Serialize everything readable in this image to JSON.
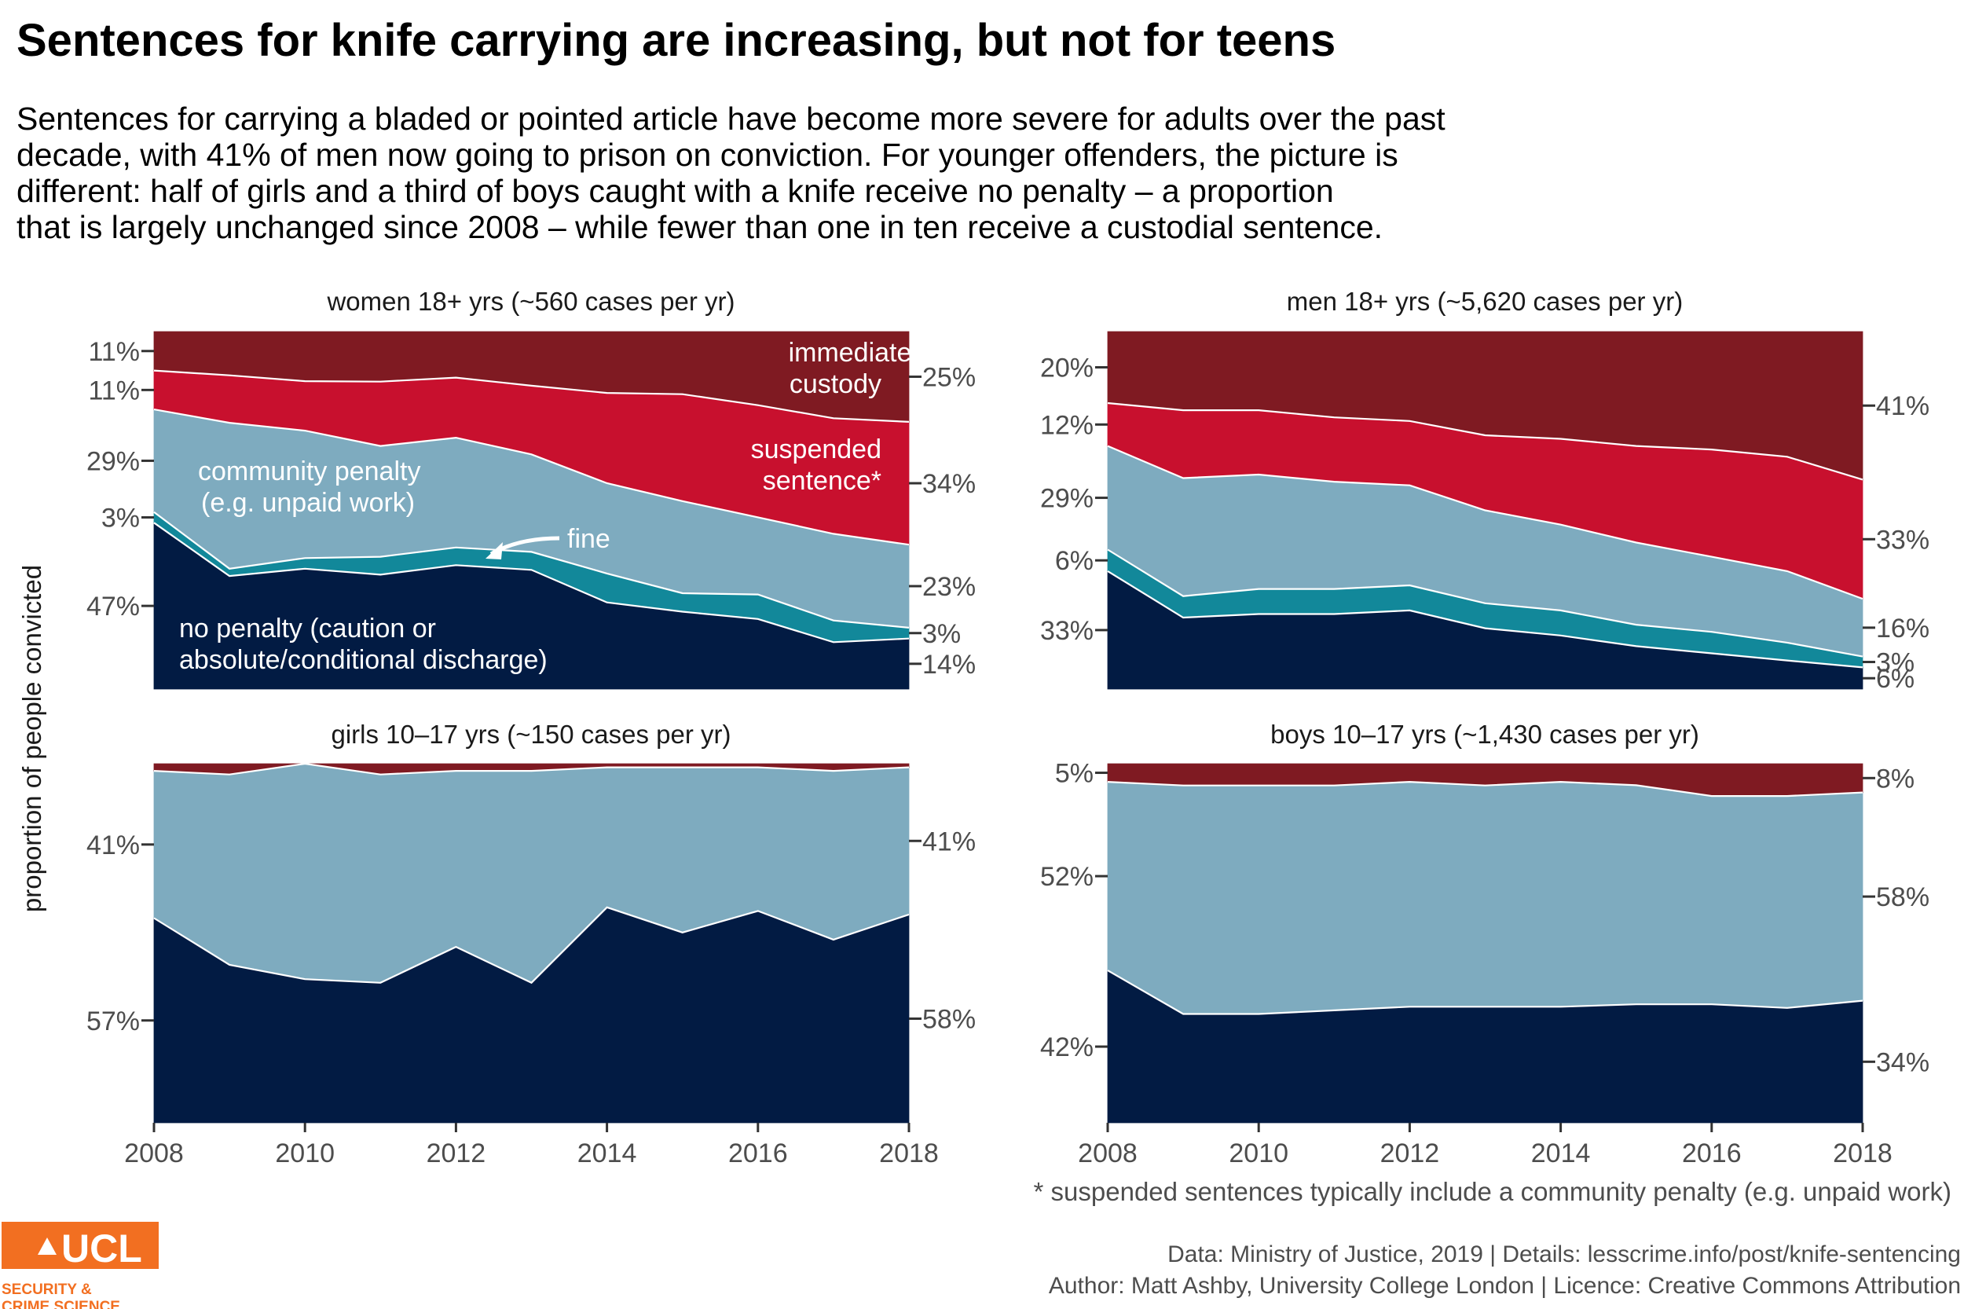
{
  "title": "Sentences for knife carrying are increasing, but not for teens",
  "subtitle_lines": [
    "Sentences for carrying a bladed or pointed article have become more severe for adults over the past",
    "decade, with 41% of men now going to prison on conviction. For younger offenders, the picture is",
    "different: half of girls and a third of boys caught with a knife receive no penalty – a proportion",
    "that is largely unchanged since 2008 – while fewer than one in ten receive a custodial sentence."
  ],
  "y_axis_label": "proportion of people convicted",
  "footnote": "* suspended sentences typically include a community penalty (e.g. unpaid work)",
  "source_line_1": "Data: Ministry of Justice, 2019 |  Details: lesscrime.info/post/knife-sentencing",
  "source_line_2": "Author: Matt Ashby, University College London |  Licence: Creative Commons Attribution",
  "logo": {
    "name": "UCL",
    "line1": "SECURITY &",
    "line2": "CRIME SCIENCE",
    "color": "#f26f21"
  },
  "colors": {
    "no_penalty": "#021b43",
    "fine": "#12889a",
    "community": "#7eabbf",
    "suspended": "#c8102e",
    "custody": "#7f1a22"
  },
  "annotations": {
    "custody_1": "immediate",
    "custody_2": "custody",
    "suspended_1": "suspended",
    "suspended_2": "sentence*",
    "community_1": "community penalty",
    "community_2": "(e.g. unpaid work)",
    "fine": "fine",
    "no_penalty_1": "no penalty (caution or",
    "no_penalty_2": "absolute/conditional discharge)"
  },
  "chart_data": [
    {
      "type": "area",
      "title": "women 18+ yrs (~560 cases per yr)",
      "x": [
        2008,
        2009,
        2010,
        2011,
        2012,
        2013,
        2014,
        2015,
        2016,
        2017,
        2018
      ],
      "stack_order": [
        "no penalty",
        "fine",
        "community penalty",
        "suspended sentence",
        "immediate custody"
      ],
      "series": [
        {
          "name": "no penalty",
          "values": [
            47,
            31,
            34,
            32,
            35,
            33,
            24,
            21,
            20,
            13,
            14
          ]
        },
        {
          "name": "fine",
          "values": [
            3,
            2,
            3,
            5,
            5,
            5,
            8,
            5,
            7,
            6,
            3
          ]
        },
        {
          "name": "community penalty",
          "values": [
            29,
            40,
            36,
            31,
            31,
            27,
            25,
            25,
            22,
            24,
            23
          ]
        },
        {
          "name": "suspended sentence",
          "values": [
            11,
            13,
            14,
            18,
            17,
            19,
            25,
            29,
            32,
            32,
            34
          ]
        },
        {
          "name": "immediate custody",
          "values": [
            11,
            12,
            14,
            14,
            13,
            15,
            17,
            17,
            21,
            24,
            25
          ]
        }
      ],
      "left_labels": [
        "47%",
        "3%",
        "29%",
        "11%",
        "11%"
      ],
      "right_labels": [
        "14%",
        "3%",
        "23%",
        "34%",
        "25%"
      ],
      "ylim": [
        0,
        100
      ],
      "xticks": [
        "2008",
        "2010",
        "2012",
        "2014",
        "2016",
        "2018"
      ]
    },
    {
      "type": "area",
      "title": "men 18+ yrs (~5,620 cases per yr)",
      "x": [
        2008,
        2009,
        2010,
        2011,
        2012,
        2013,
        2014,
        2015,
        2016,
        2017,
        2018
      ],
      "stack_order": [
        "no penalty",
        "fine",
        "community penalty",
        "suspended sentence",
        "immediate custody"
      ],
      "series": [
        {
          "name": "no penalty",
          "values": [
            33,
            20,
            21,
            21,
            22,
            17,
            15,
            12,
            10,
            8,
            6
          ]
        },
        {
          "name": "fine",
          "values": [
            6,
            6,
            7,
            7,
            7,
            7,
            7,
            6,
            6,
            5,
            3
          ]
        },
        {
          "name": "community penalty",
          "values": [
            29,
            33,
            32,
            30,
            28,
            26,
            24,
            23,
            21,
            20,
            16
          ]
        },
        {
          "name": "suspended sentence",
          "values": [
            12,
            19,
            18,
            18,
            18,
            21,
            24,
            27,
            30,
            32,
            33
          ]
        },
        {
          "name": "immediate custody",
          "values": [
            20,
            22,
            22,
            24,
            25,
            29,
            30,
            32,
            33,
            35,
            41
          ]
        }
      ],
      "left_labels": [
        "33%",
        "6%",
        "29%",
        "12%",
        "20%"
      ],
      "right_labels": [
        "6%",
        "3%",
        "16%",
        "33%",
        "41%"
      ],
      "ylim": [
        0,
        100
      ],
      "xticks": [
        "2008",
        "2010",
        "2012",
        "2014",
        "2016",
        "2018"
      ]
    },
    {
      "type": "area",
      "title": "girls 10–17 yrs (~150 cases per yr)",
      "x": [
        2008,
        2009,
        2010,
        2011,
        2012,
        2013,
        2014,
        2015,
        2016,
        2017,
        2018
      ],
      "stack_order": [
        "no penalty",
        "community penalty",
        "immediate custody"
      ],
      "series": [
        {
          "name": "no penalty",
          "values": [
            57,
            44,
            40,
            39,
            49,
            39,
            60,
            53,
            59,
            51,
            58
          ]
        },
        {
          "name": "community penalty",
          "values": [
            41,
            53,
            60,
            58,
            49,
            59,
            39,
            46,
            40,
            47,
            41
          ]
        },
        {
          "name": "immediate custody",
          "values": [
            2,
            3,
            0,
            3,
            2,
            2,
            1,
            1,
            1,
            2,
            1
          ]
        }
      ],
      "left_labels": [
        "57%",
        "41%"
      ],
      "right_labels": [
        "58%",
        "41%"
      ],
      "ylim": [
        0,
        100
      ],
      "xticks": [
        "2008",
        "2010",
        "2012",
        "2014",
        "2016",
        "2018"
      ]
    },
    {
      "type": "area",
      "title": "boys 10–17 yrs (~1,430 cases per yr)",
      "x": [
        2008,
        2009,
        2010,
        2011,
        2012,
        2013,
        2014,
        2015,
        2016,
        2017,
        2018
      ],
      "stack_order": [
        "no penalty",
        "community penalty",
        "immediate custody"
      ],
      "series": [
        {
          "name": "no penalty",
          "values": [
            42,
            30,
            30,
            31,
            32,
            32,
            32,
            33,
            33,
            32,
            34
          ]
        },
        {
          "name": "community penalty",
          "values": [
            52,
            63,
            63,
            62,
            62,
            61,
            62,
            61,
            58,
            59,
            58
          ]
        },
        {
          "name": "immediate custody",
          "values": [
            5,
            6,
            6,
            6,
            5,
            6,
            5,
            6,
            9,
            9,
            8
          ]
        }
      ],
      "left_labels": [
        "42%",
        "52%",
        "5%"
      ],
      "right_labels": [
        "34%",
        "58%",
        "8%"
      ],
      "ylim": [
        0,
        100
      ],
      "xticks": [
        "2008",
        "2010",
        "2012",
        "2014",
        "2016",
        "2018"
      ]
    }
  ]
}
